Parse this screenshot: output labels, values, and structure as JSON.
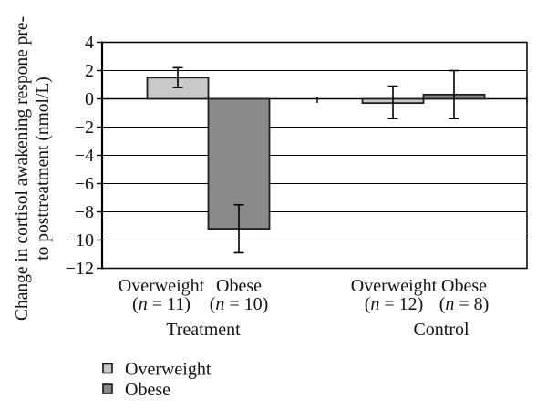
{
  "figure": {
    "background": "#ffffff"
  },
  "chart_data": {
    "type": "bar",
    "title": "",
    "ylabel_line1": "Change in cortisol awakening respone pre-",
    "ylabel_line2": "to posttreatment (nmol/L)",
    "ylabel": "Change in cortisol awakening respone pre- to posttreatment (nmol/L)",
    "ylim": [
      -12,
      4
    ],
    "yticks": [
      4,
      2,
      0,
      -2,
      -4,
      -6,
      -8,
      -10,
      -12
    ],
    "grid": true,
    "legend_position": "bottom-left",
    "groups": [
      {
        "label": "Treatment",
        "bars": [
          {
            "series": "Overweight",
            "category": "Overweight",
            "n_label": "(n = 11)",
            "n": 11,
            "value": 1.5,
            "err_top": 2.2,
            "err_bottom": 0.8
          },
          {
            "series": "Obese",
            "category": "Obese",
            "n_label": "(n = 10)",
            "n": 10,
            "value": -9.2,
            "err_top": -7.5,
            "err_bottom": -10.9
          }
        ]
      },
      {
        "label": "Control",
        "bars": [
          {
            "series": "Overweight",
            "category": "Overweight",
            "n_label": "(n = 12)",
            "n": 12,
            "value": -0.3,
            "err_top": 0.9,
            "err_bottom": -1.4
          },
          {
            "series": "Obese",
            "category": "Obese",
            "n_label": "(n = 8)",
            "n": 8,
            "value": 0.3,
            "err_top": 2.0,
            "err_bottom": -1.4
          }
        ]
      }
    ],
    "legend": [
      {
        "label": "Overweight",
        "color": "#c9c9c9"
      },
      {
        "label": "Obese",
        "color": "#8a8a8a"
      }
    ],
    "colors": {
      "grid": "#000000",
      "axis": "#000000",
      "bar_border": "#1f1f1f",
      "error_bar": "#000000",
      "text": "#141414"
    }
  }
}
